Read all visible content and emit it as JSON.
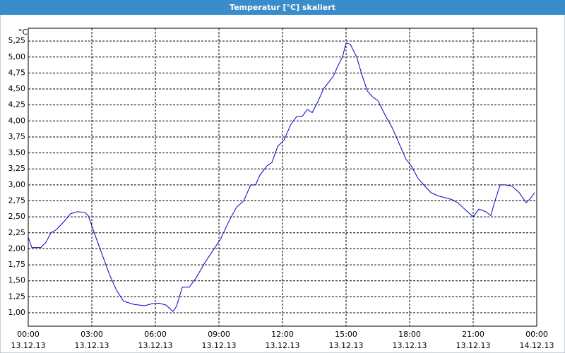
{
  "chart_data": {
    "type": "line",
    "title": "Temperatur [°C] skaliert",
    "y_unit": "°C",
    "color": "#0000c8",
    "grid": true,
    "xlim": [
      0,
      24
    ],
    "ylim": [
      0.79,
      5.45
    ],
    "xticks": [
      {
        "value": 0,
        "label": "00:00"
      },
      {
        "value": 3,
        "label": "03:00"
      },
      {
        "value": 6,
        "label": "06:00"
      },
      {
        "value": 9,
        "label": "09:00"
      },
      {
        "value": 12,
        "label": "12:00"
      },
      {
        "value": 15,
        "label": "15:00"
      },
      {
        "value": 18,
        "label": "18:00"
      },
      {
        "value": 21,
        "label": "21:00"
      },
      {
        "value": 24,
        "label": "00:00"
      }
    ],
    "xtick_dates": [
      "13.12.13",
      "13.12.13",
      "13.12.13",
      "13.12.13",
      "13.12.13",
      "13.12.13",
      "13.12.13",
      "13.12.13",
      "14.12.13"
    ],
    "yticks": [
      {
        "value": 1,
        "label": "1,00"
      },
      {
        "value": 1.25,
        "label": "1,25"
      },
      {
        "value": 1.5,
        "label": "1,50"
      },
      {
        "value": 1.75,
        "label": "1,75"
      },
      {
        "value": 2,
        "label": "2,00"
      },
      {
        "value": 2.25,
        "label": "2,25"
      },
      {
        "value": 2.5,
        "label": "2,50"
      },
      {
        "value": 2.75,
        "label": "2,75"
      },
      {
        "value": 3,
        "label": "3,00"
      },
      {
        "value": 3.25,
        "label": "3,25"
      },
      {
        "value": 3.5,
        "label": "3,50"
      },
      {
        "value": 3.75,
        "label": "3,75"
      },
      {
        "value": 4,
        "label": "4,00"
      },
      {
        "value": 4.25,
        "label": "4,25"
      },
      {
        "value": 4.5,
        "label": "4,50"
      },
      {
        "value": 4.75,
        "label": "4,75"
      },
      {
        "value": 5,
        "label": "5,00"
      },
      {
        "value": 5.25,
        "label": "5,25"
      }
    ],
    "x": [
      0,
      0.17,
      0.6,
      0.83,
      1.07,
      1.33,
      1.67,
      2,
      2.33,
      2.67,
      2.83,
      3.17,
      3.5,
      3.83,
      4.17,
      4.5,
      5,
      5.5,
      5.83,
      6.17,
      6.5,
      6.83,
      7,
      7.27,
      7.6,
      7.93,
      8.33,
      8.67,
      9.07,
      9.5,
      9.83,
      10.17,
      10.5,
      10.73,
      10.93,
      11.27,
      11.5,
      11.77,
      12.07,
      12.4,
      12.67,
      12.93,
      13.17,
      13.4,
      13.67,
      13.93,
      14.17,
      14.4,
      14.6,
      14.83,
      15,
      15.2,
      15.5,
      15.77,
      16,
      16.27,
      16.5,
      16.83,
      17.17,
      17.5,
      17.83,
      18.07,
      18.4,
      18.67,
      19,
      19.33,
      19.67,
      20,
      20.27,
      20.5,
      20.73,
      21,
      21.27,
      21.6,
      21.83,
      22,
      22.27,
      22.5,
      22.83,
      23.17,
      23.5,
      23.73,
      23.9
    ],
    "values": [
      2.18,
      2.02,
      2.02,
      2.1,
      2.25,
      2.3,
      2.42,
      2.55,
      2.58,
      2.57,
      2.52,
      2.2,
      1.9,
      1.6,
      1.35,
      1.18,
      1.13,
      1.11,
      1.14,
      1.15,
      1.12,
      1.02,
      1.1,
      1.4,
      1.4,
      1.55,
      1.78,
      1.95,
      2.15,
      2.45,
      2.65,
      2.75,
      3,
      3,
      3.15,
      3.3,
      3.35,
      3.6,
      3.7,
      3.95,
      4.07,
      4.07,
      4.18,
      4.13,
      4.3,
      4.5,
      4.6,
      4.7,
      4.85,
      5,
      5.22,
      5.2,
      5,
      4.7,
      4.47,
      4.37,
      4.32,
      4.1,
      3.9,
      3.65,
      3.4,
      3.3,
      3.1,
      3,
      2.88,
      2.83,
      2.8,
      2.77,
      2.72,
      2.65,
      2.58,
      2.5,
      2.62,
      2.58,
      2.52,
      2.72,
      3,
      3,
      2.98,
      2.88,
      2.72,
      2.8,
      2.88
    ]
  }
}
